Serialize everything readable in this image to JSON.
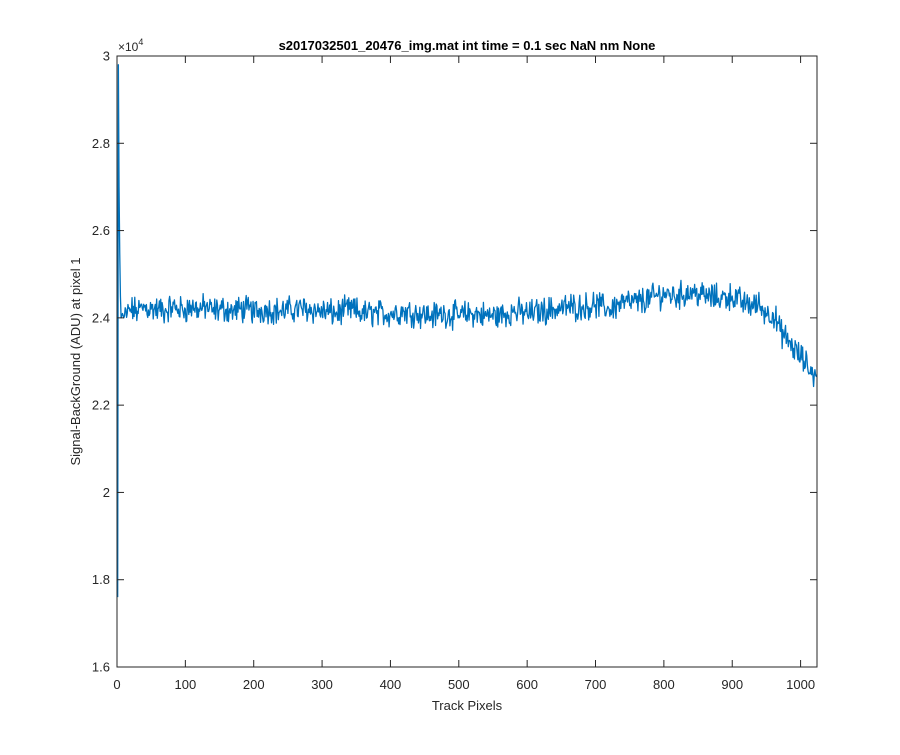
{
  "chart_data": {
    "type": "line",
    "title": "s2017032501_20476_img.mat int time = 0.1 sec  NaN nm None",
    "xlabel": "Track Pixels",
    "ylabel": "Signal-BackGround (ADU) at pixel 1",
    "xlim": [
      0,
      1024
    ],
    "ylim": [
      16000,
      30000
    ],
    "x_ticks": [
      0,
      100,
      200,
      300,
      400,
      500,
      600,
      700,
      800,
      900,
      1000
    ],
    "y_ticks": [
      16000,
      18000,
      20000,
      22000,
      24000,
      26000,
      28000,
      30000
    ],
    "y_tick_labels": [
      "1.6",
      "1.8",
      "2",
      "2.2",
      "2.4",
      "2.6",
      "2.8",
      "3"
    ],
    "y_exponent_base": "×10",
    "y_exponent_power": "4",
    "line_color": "#0072BD",
    "grid": false,
    "series": [
      {
        "x": [
          1,
          2,
          3,
          4,
          5,
          6,
          8,
          10,
          15,
          20,
          30,
          40,
          50,
          60,
          70,
          80,
          90,
          100,
          110,
          120,
          130,
          140,
          150,
          160,
          170,
          180,
          190,
          200,
          220,
          240,
          260,
          280,
          300,
          320,
          340,
          360,
          380,
          400,
          420,
          440,
          460,
          480,
          500,
          520,
          540,
          560,
          580,
          600,
          620,
          640,
          660,
          680,
          700,
          720,
          740,
          760,
          780,
          800,
          820,
          840,
          860,
          880,
          900,
          920,
          940,
          950,
          960,
          970,
          980,
          990,
          1000,
          1010,
          1020,
          1024
        ],
        "y": [
          17600,
          29800,
          27000,
          25500,
          24500,
          24000,
          24100,
          24000,
          24100,
          24200,
          24150,
          24250,
          24200,
          24200,
          24150,
          24250,
          24200,
          24200,
          24250,
          24200,
          24250,
          24150,
          24200,
          24200,
          24150,
          24200,
          24200,
          24150,
          24200,
          24150,
          24200,
          24200,
          24150,
          24100,
          24200,
          24100,
          24100,
          24100,
          24150,
          24100,
          24050,
          24100,
          24050,
          24100,
          24050,
          24050,
          24150,
          24100,
          24150,
          24200,
          24250,
          24250,
          24300,
          24200,
          24350,
          24350,
          24450,
          24550,
          24500,
          24600,
          24500,
          24450,
          24500,
          24300,
          24300,
          24100,
          24100,
          23700,
          23500,
          23300,
          23100,
          22900,
          22700,
          22700
        ]
      }
    ]
  }
}
